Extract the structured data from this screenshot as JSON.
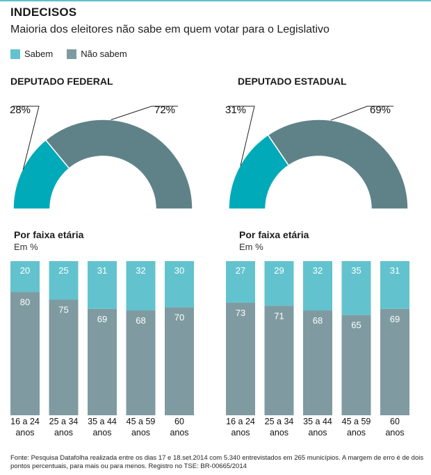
{
  "title": "INDECISOS",
  "subtitle": "Maioria dos eleitores não sabe em quem votar para o Legislativo",
  "legend": {
    "sabem": "Sabem",
    "nao_sabem": "Não sabem"
  },
  "colors": {
    "sabem": "#00aab8",
    "nao_sabem": "#5f8288",
    "sabem_light": "#62c3ce",
    "nao_sabem_light": "#7f9ba1",
    "accent_line": "#5cc1cc"
  },
  "age_heading": "Por faixa etária",
  "age_unit": "Em %",
  "footnote": "Fonte: Pesquisa Datafolha realizada entre os dias 17 e 18.set.2014 com 5.340 entrevistados em 265 municípios. A margem de erro é de dois pontos percentuais, para mais ou para menos. Registro no TSE: BR-00665/2014",
  "chart_data": [
    {
      "type": "pie",
      "title": "DEPUTADO FEDERAL",
      "series": [
        {
          "name": "Sabem",
          "value": 28,
          "label": "28%"
        },
        {
          "name": "Não sabem",
          "value": 72,
          "label": "72%"
        }
      ]
    },
    {
      "type": "pie",
      "title": "DEPUTADO ESTADUAL",
      "series": [
        {
          "name": "Sabem",
          "value": 31,
          "label": "31%"
        },
        {
          "name": "Não sabem",
          "value": 69,
          "label": "69%"
        }
      ]
    },
    {
      "type": "bar",
      "stacked": true,
      "title": "Por faixa etária",
      "unit": "Em %",
      "categories": [
        [
          "16 a 24",
          "anos"
        ],
        [
          "25 a 34",
          "anos"
        ],
        [
          "35 a 44",
          "anos"
        ],
        [
          "45 a 59",
          "anos"
        ],
        [
          "60",
          "anos"
        ]
      ],
      "series": [
        {
          "name": "Sabem",
          "values": [
            20,
            25,
            31,
            32,
            30
          ]
        },
        {
          "name": "Não sabem",
          "values": [
            80,
            75,
            69,
            68,
            70
          ]
        }
      ],
      "ylim": [
        0,
        100
      ]
    },
    {
      "type": "bar",
      "stacked": true,
      "title": "Por faixa etária",
      "unit": "Em %",
      "categories": [
        [
          "16 a 24",
          "anos"
        ],
        [
          "25 a 34",
          "anos"
        ],
        [
          "35 a 44",
          "anos"
        ],
        [
          "45 a 59",
          "anos"
        ],
        [
          "60",
          "anos"
        ]
      ],
      "series": [
        {
          "name": "Sabem",
          "values": [
            27,
            29,
            32,
            35,
            31
          ]
        },
        {
          "name": "Não sabem",
          "values": [
            73,
            71,
            68,
            65,
            69
          ]
        }
      ],
      "ylim": [
        0,
        100
      ]
    }
  ]
}
